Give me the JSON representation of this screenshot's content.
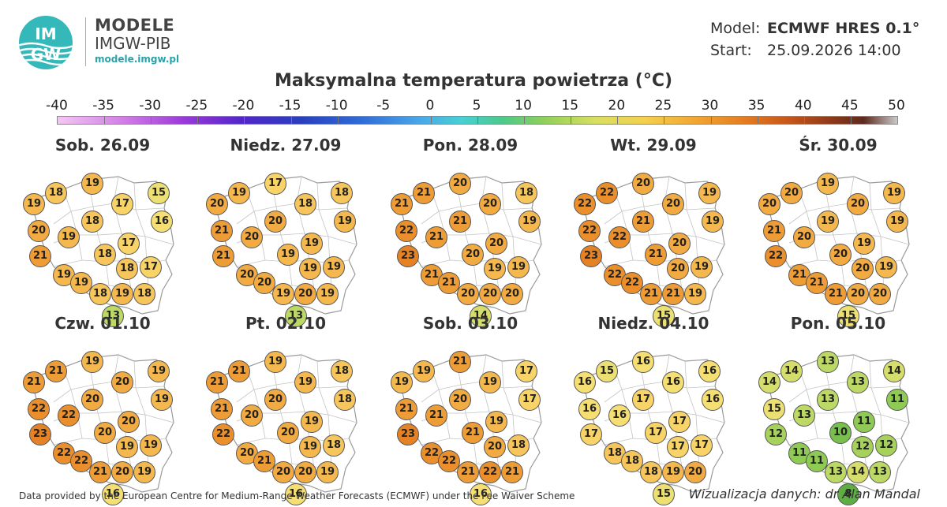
{
  "header": {
    "logo_mark_line1": "IM",
    "logo_mark_line2": "GW",
    "logo_title": "MODELE",
    "logo_subtitle": "IMGW-PIB",
    "logo_url": "modele.imgw.pl"
  },
  "model_info": {
    "model_label": "Model:",
    "model_value": "ECMWF HRES 0.1°",
    "start_label": "Start:",
    "start_value": "25.09.2026 14:00"
  },
  "title": "Maksymalna temperatura powietrza (°C)",
  "scale": {
    "labels": [
      "-40",
      "-35",
      "-30",
      "-25",
      "-20",
      "-15",
      "-10",
      "-5",
      "0",
      "5",
      "10",
      "15",
      "20",
      "25",
      "30",
      "35",
      "40",
      "45",
      "50"
    ]
  },
  "panels": [
    {
      "day": "Sob. 26.09",
      "values": [
        18,
        19,
        19,
        17,
        15,
        18,
        16,
        20,
        19,
        17,
        21,
        18,
        19,
        18,
        17,
        19,
        18,
        19,
        18,
        13
      ]
    },
    {
      "day": "Niedz. 27.09",
      "values": [
        19,
        17,
        20,
        18,
        18,
        20,
        19,
        21,
        20,
        19,
        21,
        19,
        20,
        19,
        19,
        20,
        19,
        20,
        19,
        13
      ]
    },
    {
      "day": "Pon. 28.09",
      "values": [
        21,
        20,
        21,
        20,
        18,
        21,
        19,
        22,
        21,
        20,
        23,
        20,
        21,
        19,
        19,
        21,
        20,
        20,
        20,
        14
      ]
    },
    {
      "day": "Wt. 29.09",
      "values": [
        22,
        20,
        22,
        20,
        19,
        21,
        19,
        22,
        22,
        20,
        23,
        21,
        22,
        20,
        19,
        22,
        21,
        21,
        19,
        15
      ]
    },
    {
      "day": "Śr. 30.09",
      "values": [
        20,
        19,
        20,
        20,
        19,
        19,
        19,
        21,
        20,
        19,
        22,
        20,
        21,
        20,
        19,
        21,
        21,
        20,
        20,
        15
      ]
    },
    {
      "day": "Czw. 01.10",
      "values": [
        21,
        19,
        21,
        20,
        19,
        20,
        19,
        22,
        22,
        20,
        23,
        20,
        22,
        19,
        19,
        22,
        21,
        20,
        19,
        16
      ]
    },
    {
      "day": "Pt. 02.10",
      "values": [
        21,
        19,
        21,
        19,
        18,
        20,
        18,
        21,
        20,
        19,
        22,
        20,
        20,
        19,
        18,
        21,
        20,
        20,
        19,
        16
      ]
    },
    {
      "day": "Sob. 03.10",
      "values": [
        19,
        21,
        19,
        19,
        17,
        20,
        17,
        21,
        21,
        19,
        23,
        21,
        22,
        20,
        18,
        22,
        21,
        22,
        21,
        16
      ]
    },
    {
      "day": "Niedz. 04.10",
      "values": [
        15,
        16,
        16,
        16,
        16,
        17,
        16,
        16,
        16,
        17,
        17,
        17,
        18,
        17,
        17,
        18,
        18,
        19,
        20,
        15
      ]
    },
    {
      "day": "Pon. 05.10",
      "values": [
        14,
        13,
        14,
        13,
        14,
        13,
        11,
        15,
        13,
        11,
        12,
        10,
        11,
        12,
        12,
        11,
        13,
        14,
        13,
        8
      ]
    }
  ],
  "footer": {
    "left": "Data provided by the European Centre for Medium-Range Weather Forecasts (ECMWF) under the Fee Waiver Scheme",
    "right": "Wizualizacja danych: dr Alan Mandal"
  }
}
